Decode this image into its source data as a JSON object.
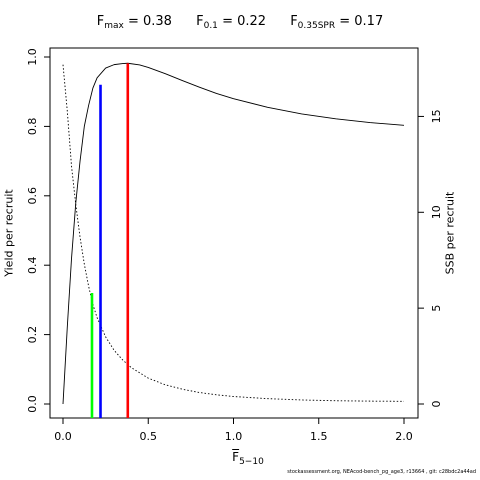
{
  "title": {
    "fmax": {
      "base": "F",
      "sub": "max",
      "value": "= 0.38"
    },
    "f01": {
      "base": "F",
      "sub": "0.1",
      "value": "= 0.22"
    },
    "f035": {
      "base": "F",
      "sub": "0.35SPR",
      "value": "= 0.17"
    }
  },
  "footer": "stockassessment.org, NEAcod-bench_pg_age3, r13664 , git: c28bdc2a44ad",
  "chart_data": {
    "type": "line",
    "xlabel": {
      "base": "F",
      "sub": "5−10"
    },
    "ylabel_left": "Yield per recruit",
    "ylabel_right": "SSB per recruit",
    "xlim": [
      0,
      2.0
    ],
    "ylim_left": [
      0,
      1.0
    ],
    "ylim_right": [
      0,
      18.1
    ],
    "x_ticks": [
      "0.0",
      "0.5",
      "1.0",
      "1.5",
      "2.0"
    ],
    "y_left_ticks": [
      "0.0",
      "0.2",
      "0.4",
      "0.6",
      "0.8",
      "1.0"
    ],
    "y_right_ticks": [
      "0",
      "5",
      "10",
      "15"
    ],
    "grid": false,
    "series": [
      {
        "axis": "left",
        "style": "solid",
        "color": "#000000",
        "x": [
          0.0,
          0.025,
          0.05,
          0.075,
          0.1,
          0.125,
          0.15,
          0.175,
          0.2,
          0.25,
          0.3,
          0.35,
          0.38,
          0.45,
          0.5,
          0.6,
          0.7,
          0.8,
          0.9,
          1.0,
          1.2,
          1.4,
          1.6,
          1.8,
          2.0
        ],
        "values": [
          0.0,
          0.22,
          0.42,
          0.58,
          0.7,
          0.8,
          0.86,
          0.91,
          0.94,
          0.968,
          0.978,
          0.981,
          0.982,
          0.977,
          0.97,
          0.952,
          0.932,
          0.913,
          0.895,
          0.88,
          0.855,
          0.836,
          0.822,
          0.811,
          0.803
        ]
      },
      {
        "axis": "right",
        "style": "dotted",
        "color": "#000000",
        "x": [
          0.0,
          0.025,
          0.05,
          0.075,
          0.1,
          0.125,
          0.15,
          0.175,
          0.2,
          0.25,
          0.3,
          0.35,
          0.4,
          0.5,
          0.6,
          0.7,
          0.8,
          0.9,
          1.0,
          1.2,
          1.4,
          1.6,
          1.8,
          2.0
        ],
        "values": [
          17.7,
          15.3,
          12.4,
          10.4,
          8.7,
          7.3,
          6.15,
          5.2,
          4.5,
          3.5,
          2.8,
          2.3,
          1.9,
          1.35,
          1.0,
          0.77,
          0.6,
          0.48,
          0.39,
          0.28,
          0.21,
          0.17,
          0.15,
          0.14
        ]
      }
    ],
    "reference_lines": [
      {
        "name": "F0.35SPR",
        "x": 0.17,
        "y": 0.32,
        "color": "#00ff00"
      },
      {
        "name": "F0.1",
        "x": 0.22,
        "y": 0.92,
        "color": "#0000ff"
      },
      {
        "name": "Fmax",
        "x": 0.38,
        "y": 0.982,
        "color": "#ff0000"
      }
    ]
  }
}
